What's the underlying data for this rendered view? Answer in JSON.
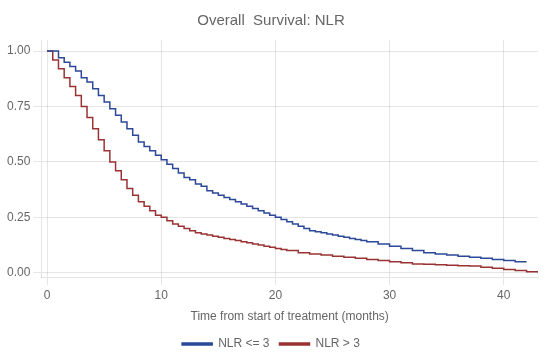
{
  "chart_data": {
    "type": "line",
    "title": "Overall  Survival: NLR",
    "xlabel": "Time from start of treatment (months)",
    "xlim": [
      -0.5,
      43
    ],
    "ylim": [
      -0.02,
      1.05
    ],
    "xticks": [
      0,
      10,
      20,
      30,
      40
    ],
    "yticks": [
      {
        "value": 0.0,
        "label": "0.00"
      },
      0.25,
      {
        "value": 0.5,
        "label": "0.50"
      },
      0.75,
      {
        "value": 1.0,
        "label": "1.00"
      }
    ],
    "grid": true,
    "legend": "bottom",
    "line_style": "steps",
    "series": [
      {
        "name": "NLR <= 3",
        "color": "#2b4899",
        "x": [
          0,
          1,
          1.5,
          2,
          2.5,
          3,
          3.5,
          4,
          4.5,
          5,
          5.5,
          6,
          6.5,
          7,
          7.5,
          8,
          8.5,
          9,
          9.5,
          10,
          10.5,
          11,
          11.5,
          12,
          12.5,
          13,
          13.5,
          14,
          14.5,
          15,
          15.5,
          16,
          16.5,
          17,
          17.5,
          18,
          18.5,
          19,
          19.5,
          20,
          20.5,
          21,
          21.5,
          22,
          22.5,
          23,
          23.5,
          24,
          24.5,
          25,
          25.5,
          26,
          26.5,
          27,
          27.5,
          28,
          29,
          30,
          31,
          32,
          33,
          34,
          35,
          36,
          37,
          38,
          39,
          40,
          41,
          42
        ],
        "values": [
          1.0,
          0.97,
          0.95,
          0.93,
          0.91,
          0.88,
          0.86,
          0.83,
          0.8,
          0.77,
          0.74,
          0.71,
          0.68,
          0.65,
          0.62,
          0.59,
          0.57,
          0.55,
          0.53,
          0.51,
          0.49,
          0.47,
          0.45,
          0.43,
          0.42,
          0.4,
          0.39,
          0.37,
          0.36,
          0.35,
          0.34,
          0.33,
          0.32,
          0.31,
          0.3,
          0.29,
          0.28,
          0.27,
          0.26,
          0.25,
          0.24,
          0.23,
          0.22,
          0.21,
          0.2,
          0.19,
          0.185,
          0.18,
          0.175,
          0.17,
          0.165,
          0.16,
          0.155,
          0.15,
          0.145,
          0.14,
          0.13,
          0.12,
          0.11,
          0.1,
          0.09,
          0.085,
          0.08,
          0.075,
          0.07,
          0.065,
          0.06,
          0.055,
          0.05,
          0.05
        ]
      },
      {
        "name": "NLR > 3",
        "color": "#993333",
        "x": [
          0,
          0.5,
          1,
          1.5,
          2,
          2.5,
          3,
          3.5,
          4,
          4.5,
          5,
          5.5,
          6,
          6.5,
          7,
          7.5,
          8,
          8.5,
          9,
          9.5,
          10,
          10.5,
          11,
          11.5,
          12,
          12.5,
          13,
          13.5,
          14,
          14.5,
          15,
          15.5,
          16,
          16.5,
          17,
          17.5,
          18,
          18.5,
          19,
          19.5,
          20,
          20.5,
          21,
          22,
          23,
          24,
          25,
          26,
          27,
          28,
          29,
          30,
          31,
          32,
          33,
          34,
          35,
          36,
          37,
          38,
          39,
          40,
          41,
          42,
          43
        ],
        "values": [
          1.0,
          0.96,
          0.92,
          0.88,
          0.84,
          0.8,
          0.75,
          0.7,
          0.65,
          0.6,
          0.55,
          0.5,
          0.46,
          0.42,
          0.38,
          0.35,
          0.32,
          0.3,
          0.28,
          0.26,
          0.25,
          0.235,
          0.22,
          0.21,
          0.2,
          0.19,
          0.18,
          0.175,
          0.17,
          0.165,
          0.16,
          0.155,
          0.15,
          0.145,
          0.14,
          0.135,
          0.13,
          0.125,
          0.12,
          0.115,
          0.11,
          0.105,
          0.1,
          0.09,
          0.085,
          0.08,
          0.075,
          0.07,
          0.065,
          0.06,
          0.055,
          0.05,
          0.045,
          0.04,
          0.038,
          0.036,
          0.034,
          0.032,
          0.03,
          0.025,
          0.02,
          0.015,
          0.01,
          0.005,
          0.0
        ]
      }
    ]
  }
}
